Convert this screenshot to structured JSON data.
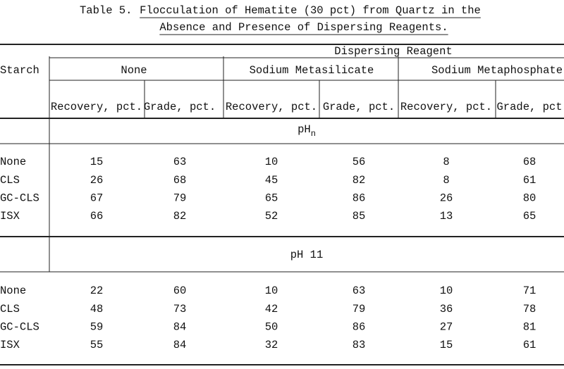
{
  "title": {
    "number": "Table 5.",
    "lines": [
      "Flocculation of Hematite (30 pct) from Quartz in the",
      "Absence and Presence of Dispersing Reagents."
    ]
  },
  "table": {
    "stub_header": "Starch",
    "spanner": "Dispersing Reagent",
    "reagents": [
      "None",
      "Sodium Metasilicate",
      "Sodium Metaphosphate"
    ],
    "columns": [
      "Recovery, pct.",
      "Grade, pct.",
      "Recovery, pct.",
      "Grade, pct.",
      "Recovery, pct.",
      "Grade, pct"
    ],
    "sections": [
      {
        "condition": {
          "text": "pH",
          "subscript": "n"
        },
        "rows": [
          {
            "starch": "None",
            "values": [
              15,
              63,
              10,
              56,
              8,
              68
            ]
          },
          {
            "starch": "CLS",
            "values": [
              26,
              68,
              45,
              82,
              8,
              61
            ]
          },
          {
            "starch": "GC-CLS",
            "values": [
              67,
              79,
              65,
              86,
              26,
              80
            ]
          },
          {
            "starch": "ISX",
            "values": [
              66,
              82,
              52,
              85,
              13,
              65
            ]
          }
        ]
      },
      {
        "condition": {
          "text": "pH 11"
        },
        "rows": [
          {
            "starch": "None",
            "values": [
              22,
              60,
              10,
              63,
              10,
              71
            ]
          },
          {
            "starch": "CLS",
            "values": [
              48,
              73,
              42,
              79,
              36,
              78
            ]
          },
          {
            "starch": "GC-CLS",
            "values": [
              59,
              84,
              50,
              86,
              27,
              81
            ]
          },
          {
            "starch": "ISX",
            "values": [
              55,
              84,
              32,
              83,
              15,
              61
            ]
          }
        ]
      }
    ]
  }
}
